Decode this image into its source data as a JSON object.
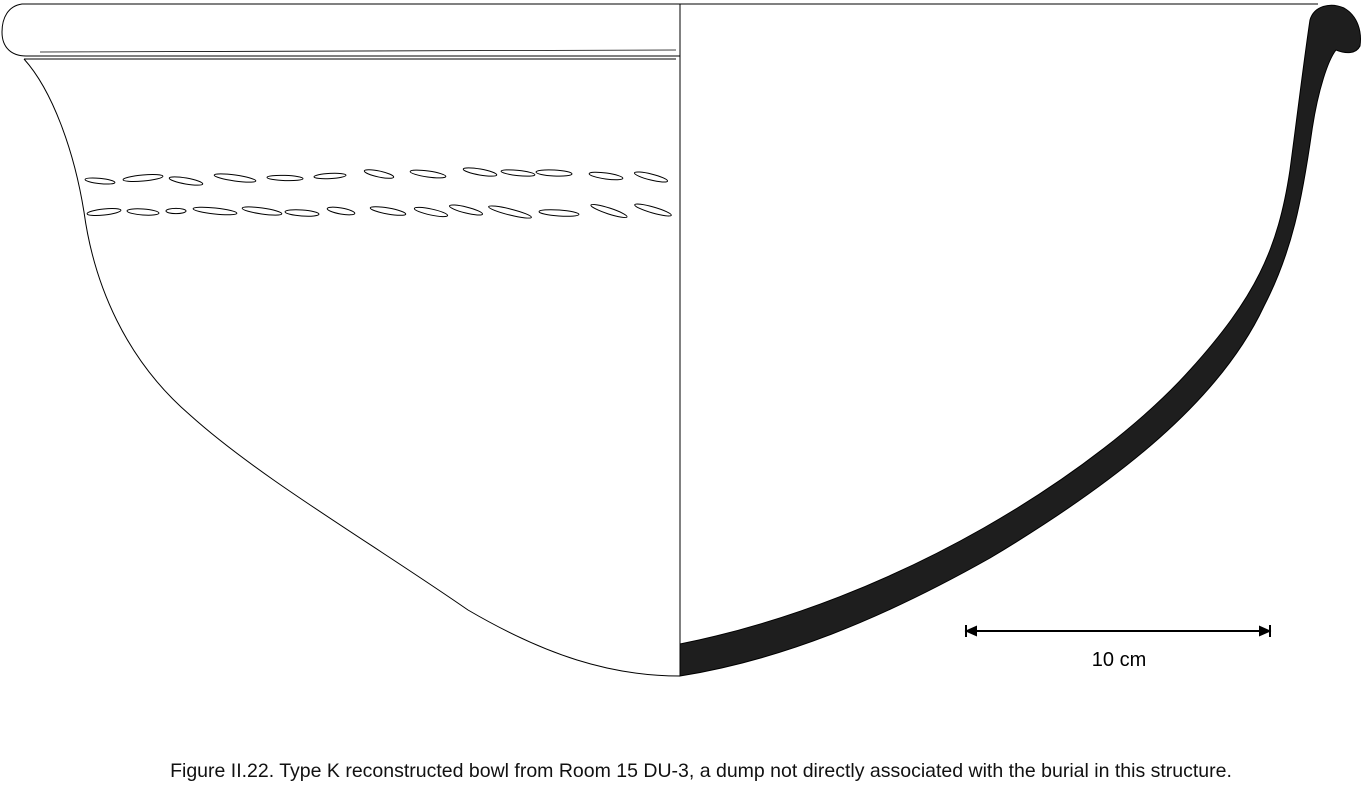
{
  "scale_bar": {
    "label": "10 cm"
  },
  "caption": "Figure II.22. Type K reconstructed bowl from Room 15 DU-3, a dump not directly associated with the burial in this structure.",
  "colors": {
    "line": "#000000",
    "section_fill": "#1e1e1e",
    "background": "#ffffff"
  }
}
